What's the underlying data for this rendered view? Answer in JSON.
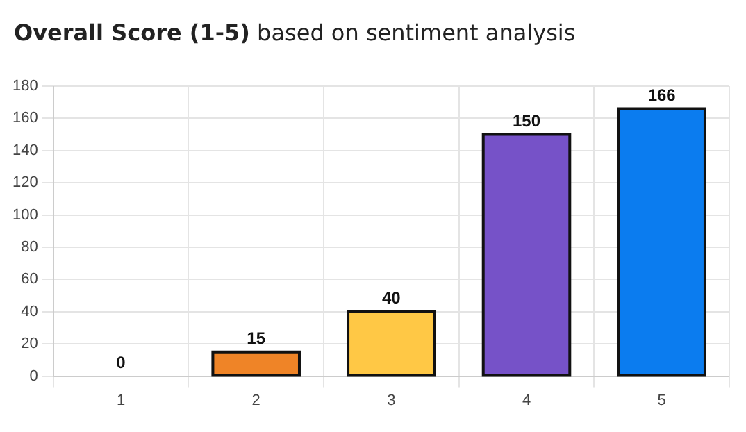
{
  "chart_data": {
    "type": "bar",
    "title": "Overall Score (1-5)",
    "subtitle": "based on sentiment analysis",
    "categories": [
      "1",
      "2",
      "3",
      "4",
      "5"
    ],
    "values": [
      0,
      15,
      40,
      150,
      166
    ],
    "colors": [
      "#e0e0e0",
      "#ef8427",
      "#ffc845",
      "#7652c8",
      "#0b7cef"
    ],
    "ylim": [
      0,
      180
    ],
    "yticks": [
      0,
      20,
      40,
      60,
      80,
      100,
      120,
      140,
      160,
      180
    ],
    "grid": true,
    "data_labels": true
  }
}
